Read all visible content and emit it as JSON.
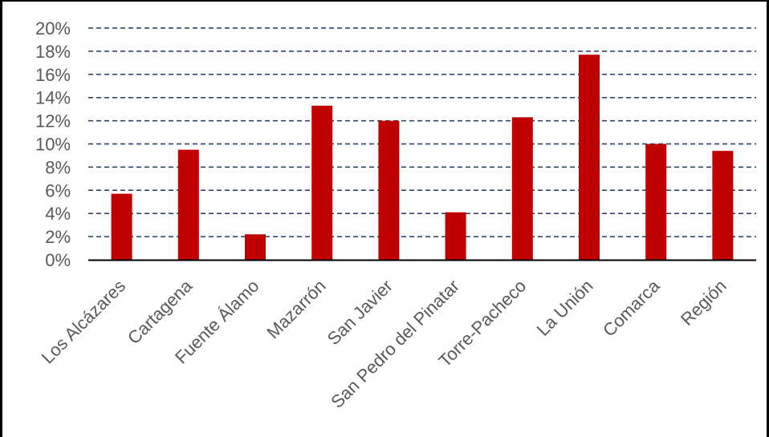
{
  "chart_data": {
    "type": "bar",
    "title": "",
    "xlabel": "",
    "ylabel": "",
    "categories": [
      "Los Alcázares",
      "Cartagena",
      "Fuente Álamo",
      "Mazarrón",
      "San Javier",
      "San Pedro del Pinatar",
      "Torre-Pacheco",
      "La Unión",
      "Comarca",
      "Región"
    ],
    "values": [
      5.7,
      9.5,
      2.2,
      13.3,
      12.0,
      4.1,
      12.3,
      17.7,
      10.0,
      9.4
    ],
    "ylim": [
      0,
      20
    ],
    "yticks": [
      0,
      2,
      4,
      6,
      8,
      10,
      12,
      14,
      16,
      18,
      20
    ],
    "ytick_format": "percent",
    "grid": "horizontal dashed",
    "legend": "none",
    "colors": {
      "bar": "#c00000",
      "grid": "#1f3864",
      "axis": "#000000",
      "text": "#595959"
    }
  }
}
